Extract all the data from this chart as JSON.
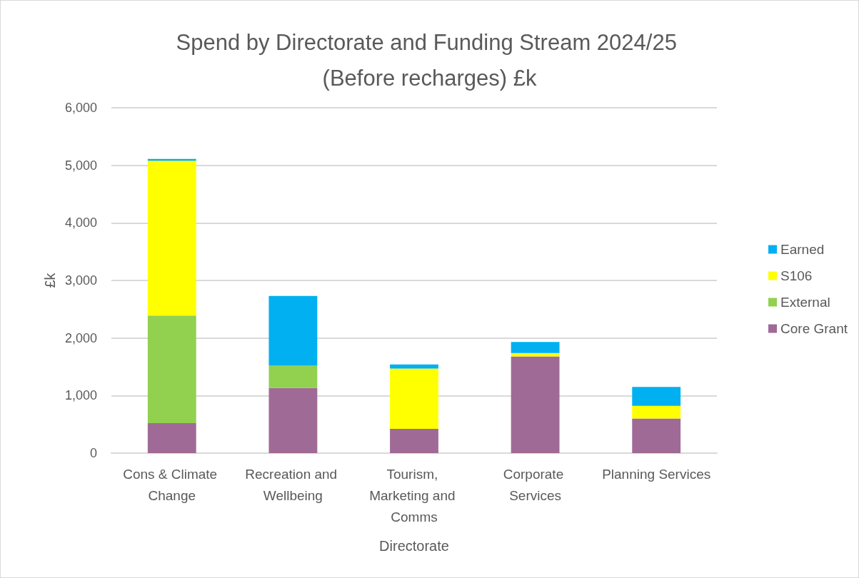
{
  "chart_data": {
    "type": "bar",
    "title": "Spend by Directorate and Funding Stream 2024/25 (Before recharges) £k",
    "xlabel": "Directorate",
    "ylabel": "£k",
    "categories": [
      "Cons & Climate Change",
      "Recreation and Wellbeing",
      "Tourism, Marketing and Comms",
      "Corporate Services",
      "Planning Services"
    ],
    "stacked": true,
    "series": [
      {
        "name": "Core Grant",
        "color": "#a06a96",
        "values": [
          520,
          1130,
          420,
          1680,
          600
        ]
      },
      {
        "name": "External",
        "color": "#92d050",
        "values": [
          1870,
          390,
          0,
          0,
          0
        ]
      },
      {
        "name": "S106",
        "color": "#ffff00",
        "values": [
          2690,
          0,
          1050,
          60,
          220
        ]
      },
      {
        "name": "Earned",
        "color": "#00b0f0",
        "values": [
          30,
          1210,
          70,
          190,
          330
        ]
      }
    ],
    "ylim": [
      0,
      6000
    ],
    "yticks": [
      0,
      {
        "value": 1000,
        "label": "1,000"
      },
      {
        "value": 2000,
        "label": "2,000"
      },
      {
        "value": 3000,
        "label": "3,000"
      },
      {
        "value": 4000,
        "label": "4,000"
      },
      {
        "value": 5000,
        "label": "5,000"
      },
      {
        "value": 6000,
        "label": "6,000"
      }
    ],
    "grid": "y",
    "legend": "right"
  }
}
